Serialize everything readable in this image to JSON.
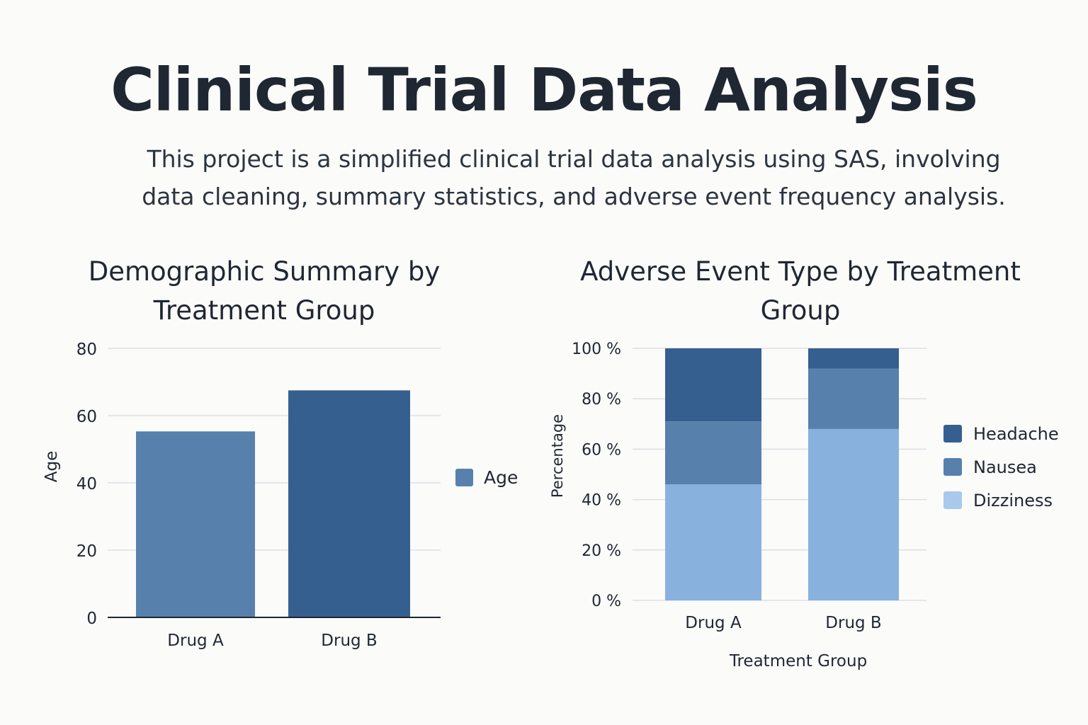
{
  "page": {
    "title": "Clinical Trial Data Analysis",
    "subtitle": "This project is a simplified clinical trial data analysis using SAS, involving data cleaning, summary statistics, and adverse event frequency analysis."
  },
  "colors": {
    "bar_drug_a": "#5781ac",
    "bar_drug_b": "#355f8f",
    "headache": "#355f8f",
    "nausea": "#5781ac",
    "dizziness": "#88b2dd",
    "dizziness_legend": "#a9c9ea",
    "grid": "#dcdfe4",
    "axis": "#1f2733"
  },
  "chart_data": [
    {
      "type": "bar",
      "title": "Demographic Summary by Treatment Group",
      "categories": [
        "Drug A",
        "Drug B"
      ],
      "series": [
        {
          "name": "Age",
          "values": [
            55.3,
            67.5
          ]
        }
      ],
      "xlabel": "",
      "ylabel": "Age",
      "ylim": [
        0,
        80
      ],
      "yticks": [
        "0",
        "20",
        "40",
        "60",
        "80"
      ],
      "grid": true,
      "legend": "right"
    },
    {
      "type": "bar",
      "stacked": true,
      "title": "Adverse Event Type by Treatment Group",
      "categories": [
        "Drug A",
        "Drug B"
      ],
      "series": [
        {
          "name": "Dizziness",
          "values": [
            46,
            68
          ]
        },
        {
          "name": "Nausea",
          "values": [
            25,
            24
          ]
        },
        {
          "name": "Headache",
          "values": [
            29,
            8
          ]
        }
      ],
      "legend_order": [
        "Headache",
        "Nausea",
        "Dizziness"
      ],
      "xlabel": "Treatment Group",
      "ylabel": "Percentage",
      "ylim": [
        0,
        100
      ],
      "yticks": [
        "0 %",
        "20 %",
        "40 %",
        "60 %",
        "80 %",
        "100 %"
      ],
      "grid": true,
      "legend": "right"
    }
  ]
}
